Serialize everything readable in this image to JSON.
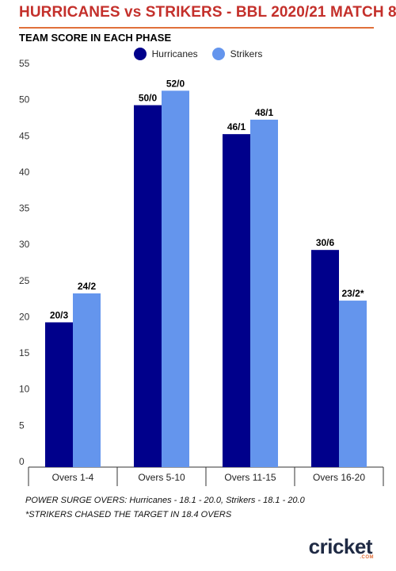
{
  "title": "HURRICANES vs STRIKERS - BBL 2020/21 MATCH 8",
  "subtitle": "TEAM SCORE IN EACH PHASE",
  "colors": {
    "title": "#c4302b",
    "series1": "#00008b",
    "series2": "#6495ed"
  },
  "chart_data": {
    "type": "bar",
    "categories": [
      "Overs 1-4",
      "Overs 5-10",
      "Overs 11-15",
      "Overs 16-20"
    ],
    "series": [
      {
        "name": "Hurricanes",
        "values": [
          20,
          50,
          46,
          30
        ],
        "labels": [
          "20/3",
          "50/0",
          "46/1",
          "30/6"
        ]
      },
      {
        "name": "Strikers",
        "values": [
          24,
          52,
          48,
          23
        ],
        "labels": [
          "24/2",
          "52/0",
          "48/1",
          "23/2*"
        ]
      }
    ],
    "yticks": [
      0,
      5,
      10,
      15,
      20,
      25,
      30,
      35,
      40,
      45,
      50,
      55
    ],
    "ylim": [
      0,
      55
    ],
    "grid": false,
    "legend": "top-center"
  },
  "footnotes": [
    "POWER SURGE OVERS: Hurricanes - 18.1 - 20.0, Strikers - 18.1 - 20.0",
    "*STRIKERS CHASED THE TARGET IN 18.4 OVERS"
  ],
  "logo": {
    "text": "cricket",
    "sub": ".COM"
  }
}
